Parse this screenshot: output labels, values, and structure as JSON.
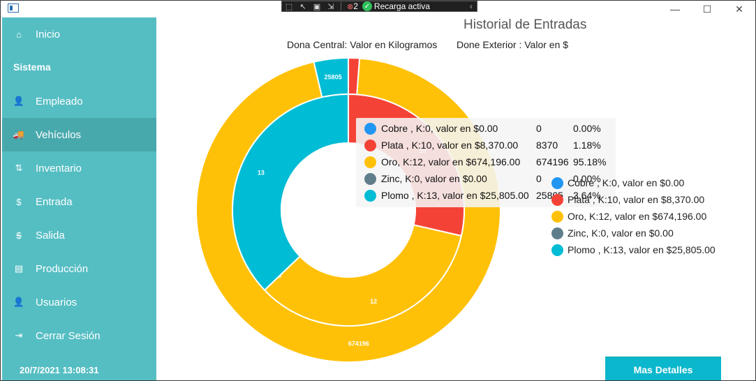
{
  "window": {
    "controls": {
      "minimize": "—",
      "maximize": "☐",
      "close": "✕"
    }
  },
  "devtools": {
    "error_count": "2",
    "status": "Recarga activa"
  },
  "sidebar": {
    "items": [
      {
        "label": "Inicio",
        "icon": "home-icon",
        "glyph": "⌂"
      },
      {
        "label": "Empleado",
        "icon": "user-icon",
        "glyph": "👤"
      },
      {
        "label": "Vehículos",
        "icon": "truck-icon",
        "glyph": "🚚"
      },
      {
        "label": "Inventario",
        "icon": "inventory-icon",
        "glyph": "⇅"
      },
      {
        "label": "Entrada",
        "icon": "dollar-icon",
        "glyph": "$"
      },
      {
        "label": "Salida",
        "icon": "no-dollar-icon",
        "glyph": "$"
      },
      {
        "label": "Producción",
        "icon": "factory-icon",
        "glyph": "▤"
      },
      {
        "label": "Usuarios",
        "icon": "user-icon",
        "glyph": "👤"
      },
      {
        "label": "Cerrar Sesión",
        "icon": "logout-icon",
        "glyph": "⇥"
      }
    ],
    "section_label": "Sistema",
    "datetime": "20/7/2021 13:08:31"
  },
  "main": {
    "title": "Historial de Entradas",
    "subtitle_inner": "Dona Central: Valor en Kilogramos",
    "subtitle_outer": "Done Exterior : Valor en $",
    "more_button": "Mas Detalles"
  },
  "tooltip": {
    "rows": [
      {
        "label": "Cobre , K:0, valor en $0.00",
        "value": "0",
        "pct": "0.00%",
        "color": "#2196f3"
      },
      {
        "label": "Plata , K:10, valor en $8,370.00",
        "value": "8370",
        "pct": "1.18%",
        "color": "#f44336"
      },
      {
        "label": "Oro, K:12, valor en $674,196.00",
        "value": "674196",
        "pct": "95.18%",
        "color": "#ffc107"
      },
      {
        "label": "Zinc, K:0, valor en $0.00",
        "value": "0",
        "pct": "0.00%",
        "color": "#607d8b"
      },
      {
        "label": "Plomo , K:13, valor en $25,805.00",
        "value": "25805",
        "pct": "3.64%",
        "color": "#00bcd4"
      }
    ]
  },
  "legend": {
    "rows": [
      {
        "label": "Cobre , K:0, valor en $0.00",
        "color": "#2196f3"
      },
      {
        "label": "Plata , K:10, valor en $8,370.00",
        "color": "#f44336"
      },
      {
        "label": "Oro, K:12, valor en $674,196.00",
        "color": "#ffc107"
      },
      {
        "label": "Zinc, K:0, valor en $0.00",
        "color": "#607d8b"
      },
      {
        "label": "Plomo , K:13, valor en $25,805.00",
        "color": "#00bcd4"
      }
    ]
  },
  "chart_data": {
    "type": "pie",
    "title": "Historial de Entradas",
    "categories": [
      "Cobre",
      "Plata",
      "Oro",
      "Zinc",
      "Plomo"
    ],
    "series": [
      {
        "values": [
          0,
          10,
          12,
          0,
          13
        ]
      },
      {
        "values": [
          0,
          8370,
          674196,
          0,
          25805
        ]
      }
    ],
    "colors": [
      "#2196f3",
      "#f44336",
      "#ffc107",
      "#607d8b",
      "#00bcd4"
    ],
    "inner_labels": [
      "",
      "10",
      "12",
      "0",
      "13"
    ],
    "outer_labels": [
      "",
      "",
      "674196",
      "",
      "25805"
    ]
  }
}
